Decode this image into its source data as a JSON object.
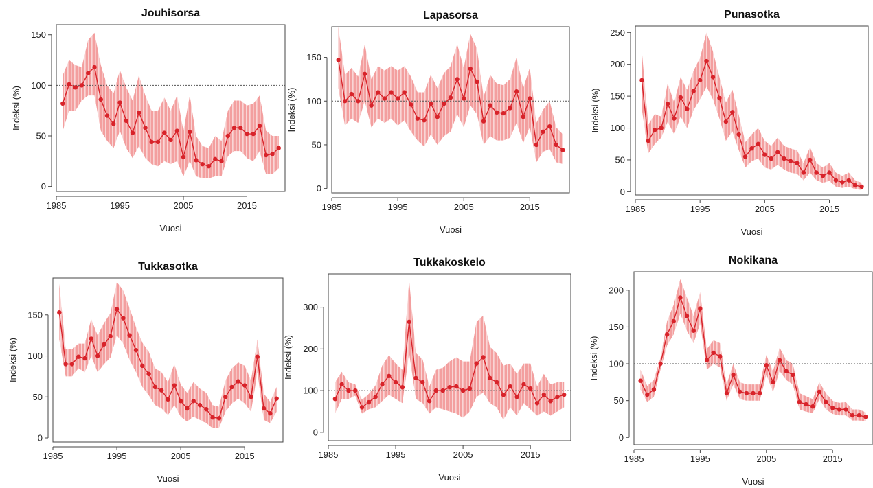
{
  "colors": {
    "band": "#f29a9a",
    "hatch": "#fbe3e3",
    "line": "#d8232a",
    "ref": "#555555",
    "frame": "#444444"
  },
  "chart_data": [
    {
      "type": "line",
      "title": "Jouhisorsa",
      "xlabel": "Vuosi",
      "ylabel": "Indeksi (%)",
      "xlim": [
        1985,
        2021
      ],
      "ylim": [
        -5,
        160
      ],
      "xticks": [
        1985,
        1995,
        2005,
        2015
      ],
      "yticks": [
        0,
        50,
        100,
        150
      ],
      "reference_line": 100,
      "x_start": 1986,
      "values": [
        82,
        101,
        98,
        100,
        112,
        118,
        86,
        70,
        62,
        83,
        65,
        53,
        73,
        58,
        44,
        44,
        53,
        46,
        55,
        29,
        54,
        26,
        22,
        20,
        27,
        25,
        50,
        58,
        58,
        52,
        52,
        60,
        31,
        32,
        38
      ],
      "lower": [
        55,
        75,
        75,
        85,
        90,
        90,
        55,
        45,
        38,
        55,
        38,
        28,
        40,
        28,
        22,
        20,
        25,
        22,
        25,
        10,
        25,
        10,
        8,
        8,
        10,
        10,
        30,
        35,
        35,
        28,
        25,
        35,
        12,
        12,
        18
      ],
      "upper": [
        110,
        125,
        120,
        118,
        145,
        152,
        120,
        100,
        92,
        115,
        98,
        85,
        110,
        90,
        75,
        75,
        88,
        75,
        90,
        55,
        90,
        50,
        40,
        38,
        50,
        45,
        75,
        85,
        85,
        80,
        82,
        90,
        55,
        50,
        50
      ]
    },
    {
      "type": "line",
      "title": "Lapasorsa",
      "xlabel": "Vuosi",
      "ylabel": "Indeksi (%)",
      "xlim": [
        1985,
        2021
      ],
      "ylim": [
        -5,
        185
      ],
      "xticks": [
        1985,
        1995,
        2005,
        2015
      ],
      "yticks": [
        0,
        50,
        100,
        150
      ],
      "reference_line": 100,
      "x_start": 1986,
      "values": [
        147,
        100,
        108,
        100,
        131,
        95,
        110,
        103,
        110,
        103,
        110,
        96,
        80,
        78,
        97,
        82,
        97,
        104,
        125,
        103,
        137,
        122,
        77,
        95,
        87,
        86,
        92,
        111,
        82,
        103,
        50,
        65,
        71,
        50,
        44
      ],
      "lower": [
        115,
        72,
        80,
        75,
        100,
        70,
        80,
        75,
        80,
        72,
        78,
        65,
        55,
        48,
        62,
        50,
        60,
        65,
        85,
        70,
        95,
        85,
        50,
        60,
        55,
        55,
        58,
        75,
        52,
        70,
        30,
        42,
        45,
        30,
        28
      ],
      "upper": [
        185,
        130,
        138,
        128,
        165,
        125,
        140,
        135,
        140,
        135,
        140,
        128,
        110,
        110,
        130,
        115,
        132,
        140,
        165,
        138,
        177,
        160,
        105,
        130,
        120,
        118,
        125,
        150,
        115,
        138,
        75,
        90,
        100,
        70,
        62
      ]
    },
    {
      "type": "line",
      "title": "Punasotka",
      "xlabel": "Vuosi",
      "ylabel": "Indeksi (%)",
      "xlim": [
        1985,
        2021
      ],
      "ylim": [
        -5,
        260
      ],
      "xticks": [
        1985,
        1995,
        2005,
        2015
      ],
      "yticks": [
        0,
        50,
        100,
        150,
        200,
        250
      ],
      "reference_line": 100,
      "x_start": 1986,
      "values": [
        175,
        80,
        97,
        100,
        138,
        115,
        148,
        130,
        158,
        175,
        205,
        180,
        147,
        110,
        125,
        90,
        55,
        68,
        75,
        58,
        52,
        62,
        52,
        48,
        45,
        30,
        50,
        30,
        25,
        30,
        18,
        15,
        18,
        10,
        8
      ],
      "lower": [
        130,
        60,
        75,
        85,
        110,
        90,
        118,
        100,
        128,
        145,
        165,
        145,
        115,
        80,
        95,
        65,
        38,
        48,
        52,
        38,
        35,
        42,
        35,
        30,
        28,
        18,
        30,
        18,
        14,
        17,
        8,
        6,
        8,
        4,
        3
      ],
      "upper": [
        222,
        105,
        122,
        118,
        170,
        140,
        180,
        160,
        190,
        210,
        250,
        220,
        180,
        140,
        160,
        120,
        78,
        90,
        100,
        80,
        72,
        85,
        72,
        68,
        65,
        45,
        70,
        45,
        38,
        45,
        30,
        25,
        30,
        18,
        14
      ]
    },
    {
      "type": "line",
      "title": "Tukkasotka",
      "xlabel": "Vuosi",
      "ylabel": "Indeksi (%)",
      "xlim": [
        1985,
        2021
      ],
      "ylim": [
        -5,
        195
      ],
      "xticks": [
        1985,
        1995,
        2005,
        2015
      ],
      "yticks": [
        0,
        50,
        100,
        150
      ],
      "reference_line": 100,
      "x_start": 1986,
      "values": [
        153,
        90,
        90,
        99,
        97,
        121,
        100,
        114,
        124,
        157,
        146,
        125,
        107,
        88,
        78,
        62,
        58,
        47,
        64,
        45,
        36,
        45,
        40,
        35,
        25,
        24,
        50,
        62,
        69,
        64,
        50,
        99,
        36,
        30,
        48
      ],
      "lower": [
        120,
        75,
        75,
        85,
        80,
        100,
        80,
        90,
        98,
        125,
        115,
        95,
        80,
        62,
        52,
        40,
        36,
        28,
        40,
        26,
        20,
        26,
        22,
        18,
        12,
        12,
        32,
        42,
        48,
        42,
        32,
        80,
        22,
        18,
        32
      ],
      "upper": [
        188,
        108,
        108,
        115,
        115,
        145,
        125,
        140,
        152,
        190,
        180,
        158,
        135,
        116,
        105,
        85,
        80,
        68,
        90,
        65,
        55,
        68,
        60,
        55,
        40,
        38,
        70,
        85,
        92,
        88,
        70,
        120,
        54,
        44,
        62
      ]
    },
    {
      "type": "line",
      "title": "Tukkakoskelo",
      "xlabel": "Vuosi",
      "ylabel": "Indeksi (%)",
      "xlim": [
        1985,
        2021
      ],
      "ylim": [
        -20,
        380
      ],
      "xticks": [
        1985,
        1995,
        2005,
        2015
      ],
      "yticks": [
        0,
        100,
        200,
        300
      ],
      "reference_line": 100,
      "x_start": 1986,
      "values": [
        80,
        115,
        100,
        100,
        60,
        72,
        85,
        115,
        135,
        120,
        108,
        265,
        130,
        120,
        75,
        100,
        100,
        108,
        110,
        100,
        105,
        165,
        180,
        130,
        120,
        90,
        110,
        85,
        115,
        105,
        70,
        90,
        75,
        85,
        90
      ],
      "lower": [
        45,
        80,
        80,
        88,
        45,
        55,
        60,
        75,
        90,
        80,
        70,
        190,
        80,
        70,
        45,
        60,
        55,
        50,
        45,
        35,
        50,
        85,
        95,
        70,
        60,
        30,
        60,
        40,
        70,
        55,
        40,
        50,
        40,
        50,
        60
      ],
      "upper": [
        120,
        145,
        120,
        115,
        78,
        92,
        112,
        160,
        185,
        165,
        150,
        365,
        190,
        175,
        110,
        150,
        155,
        170,
        180,
        170,
        170,
        265,
        280,
        205,
        190,
        160,
        165,
        140,
        165,
        165,
        110,
        140,
        115,
        120,
        120
      ]
    },
    {
      "type": "line",
      "title": "Nokikana",
      "xlabel": "Vuosi",
      "ylabel": "Indeksi (%)",
      "xlim": [
        1985,
        2021
      ],
      "ylim": [
        -10,
        225
      ],
      "xticks": [
        1985,
        1995,
        2005,
        2015
      ],
      "yticks": [
        0,
        50,
        100,
        150,
        200
      ],
      "reference_line": 100,
      "x_start": 1986,
      "values": [
        77,
        58,
        65,
        100,
        140,
        158,
        190,
        165,
        145,
        175,
        105,
        115,
        110,
        60,
        85,
        62,
        60,
        60,
        60,
        98,
        75,
        105,
        90,
        85,
        48,
        45,
        42,
        62,
        48,
        40,
        38,
        38,
        30,
        30,
        28
      ],
      "lower": [
        65,
        48,
        55,
        92,
        125,
        140,
        168,
        145,
        128,
        155,
        92,
        100,
        95,
        50,
        72,
        52,
        50,
        50,
        50,
        85,
        62,
        90,
        78,
        72,
        38,
        35,
        33,
        52,
        38,
        32,
        30,
        30,
        23,
        23,
        22
      ],
      "upper": [
        92,
        70,
        78,
        108,
        158,
        180,
        215,
        190,
        165,
        198,
        120,
        132,
        128,
        72,
        100,
        75,
        72,
        72,
        72,
        112,
        90,
        122,
        105,
        100,
        60,
        56,
        52,
        75,
        60,
        50,
        47,
        48,
        38,
        38,
        34
      ]
    }
  ]
}
